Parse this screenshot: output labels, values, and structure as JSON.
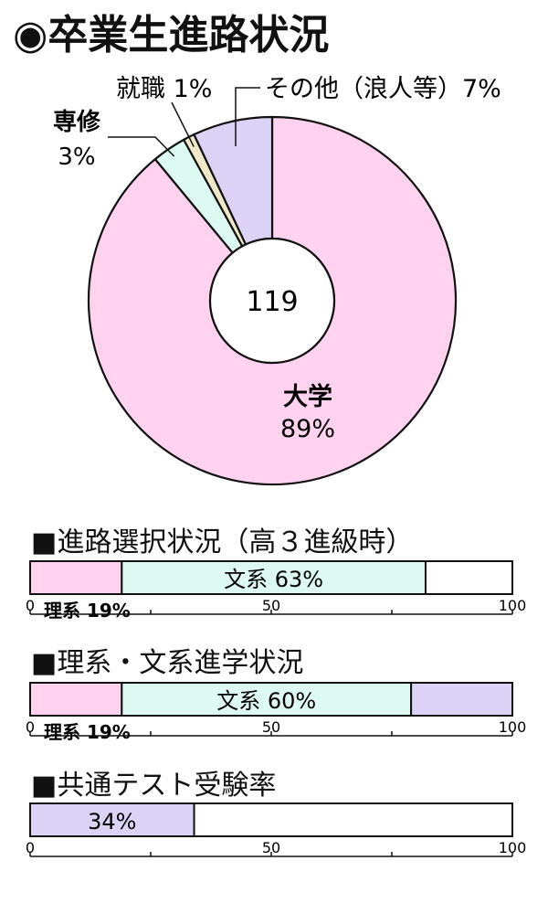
{
  "page": {
    "title": "◉卒業生進路状況"
  },
  "chart_data": [
    {
      "type": "pie",
      "center_label": "119",
      "slices": [
        {
          "key": "daigaku",
          "label": "大学",
          "value": 89,
          "value_label": "89%",
          "color": "#ffd2f0"
        },
        {
          "key": "senshu",
          "label": "専修",
          "value": 3,
          "value_label": "3%",
          "color": "#dcfaf2"
        },
        {
          "key": "shushoku",
          "label": "就職",
          "value": 1,
          "value_label": "1%",
          "color": "#f0e8c8"
        },
        {
          "key": "sonota",
          "label": "その他（浪人等）",
          "value": 7,
          "value_label": "7%",
          "color": "#dcd2f6"
        }
      ],
      "callouts": {
        "shushoku": "就職 1%",
        "sonota": "その他（浪人等）7%"
      }
    },
    {
      "type": "bar",
      "title": "■進路選択状況（高３進級時）",
      "xlim": [
        0,
        100
      ],
      "tick_labels": [
        "0",
        "50",
        "100"
      ],
      "segments": [
        {
          "name": "理系",
          "value": 19,
          "label": "",
          "outside_label": "理系 19%",
          "color": "#ffd2f0"
        },
        {
          "name": "文系",
          "value": 63,
          "label": "文系 63%",
          "outside_label": "",
          "color": "#dcfaf2"
        }
      ]
    },
    {
      "type": "bar",
      "title": "■理系・文系進学状況",
      "xlim": [
        0,
        100
      ],
      "tick_labels": [
        "0",
        "50",
        "100"
      ],
      "segments": [
        {
          "name": "理系",
          "value": 19,
          "label": "",
          "outside_label": "理系 19%",
          "color": "#ffd2f0"
        },
        {
          "name": "文系",
          "value": 60,
          "label": "文系 60%",
          "outside_label": "",
          "color": "#dcfaf2"
        },
        {
          "name": "",
          "value": 21,
          "label": "",
          "outside_label": "",
          "color": "#dcd2f6"
        }
      ]
    },
    {
      "type": "bar",
      "title": "■共通テスト受験率",
      "xlim": [
        0,
        100
      ],
      "tick_labels": [
        "0",
        "50",
        "100"
      ],
      "segments": [
        {
          "name": "",
          "value": 34,
          "label": "34%",
          "outside_label": "",
          "color": "#dcd2f6"
        }
      ]
    }
  ]
}
